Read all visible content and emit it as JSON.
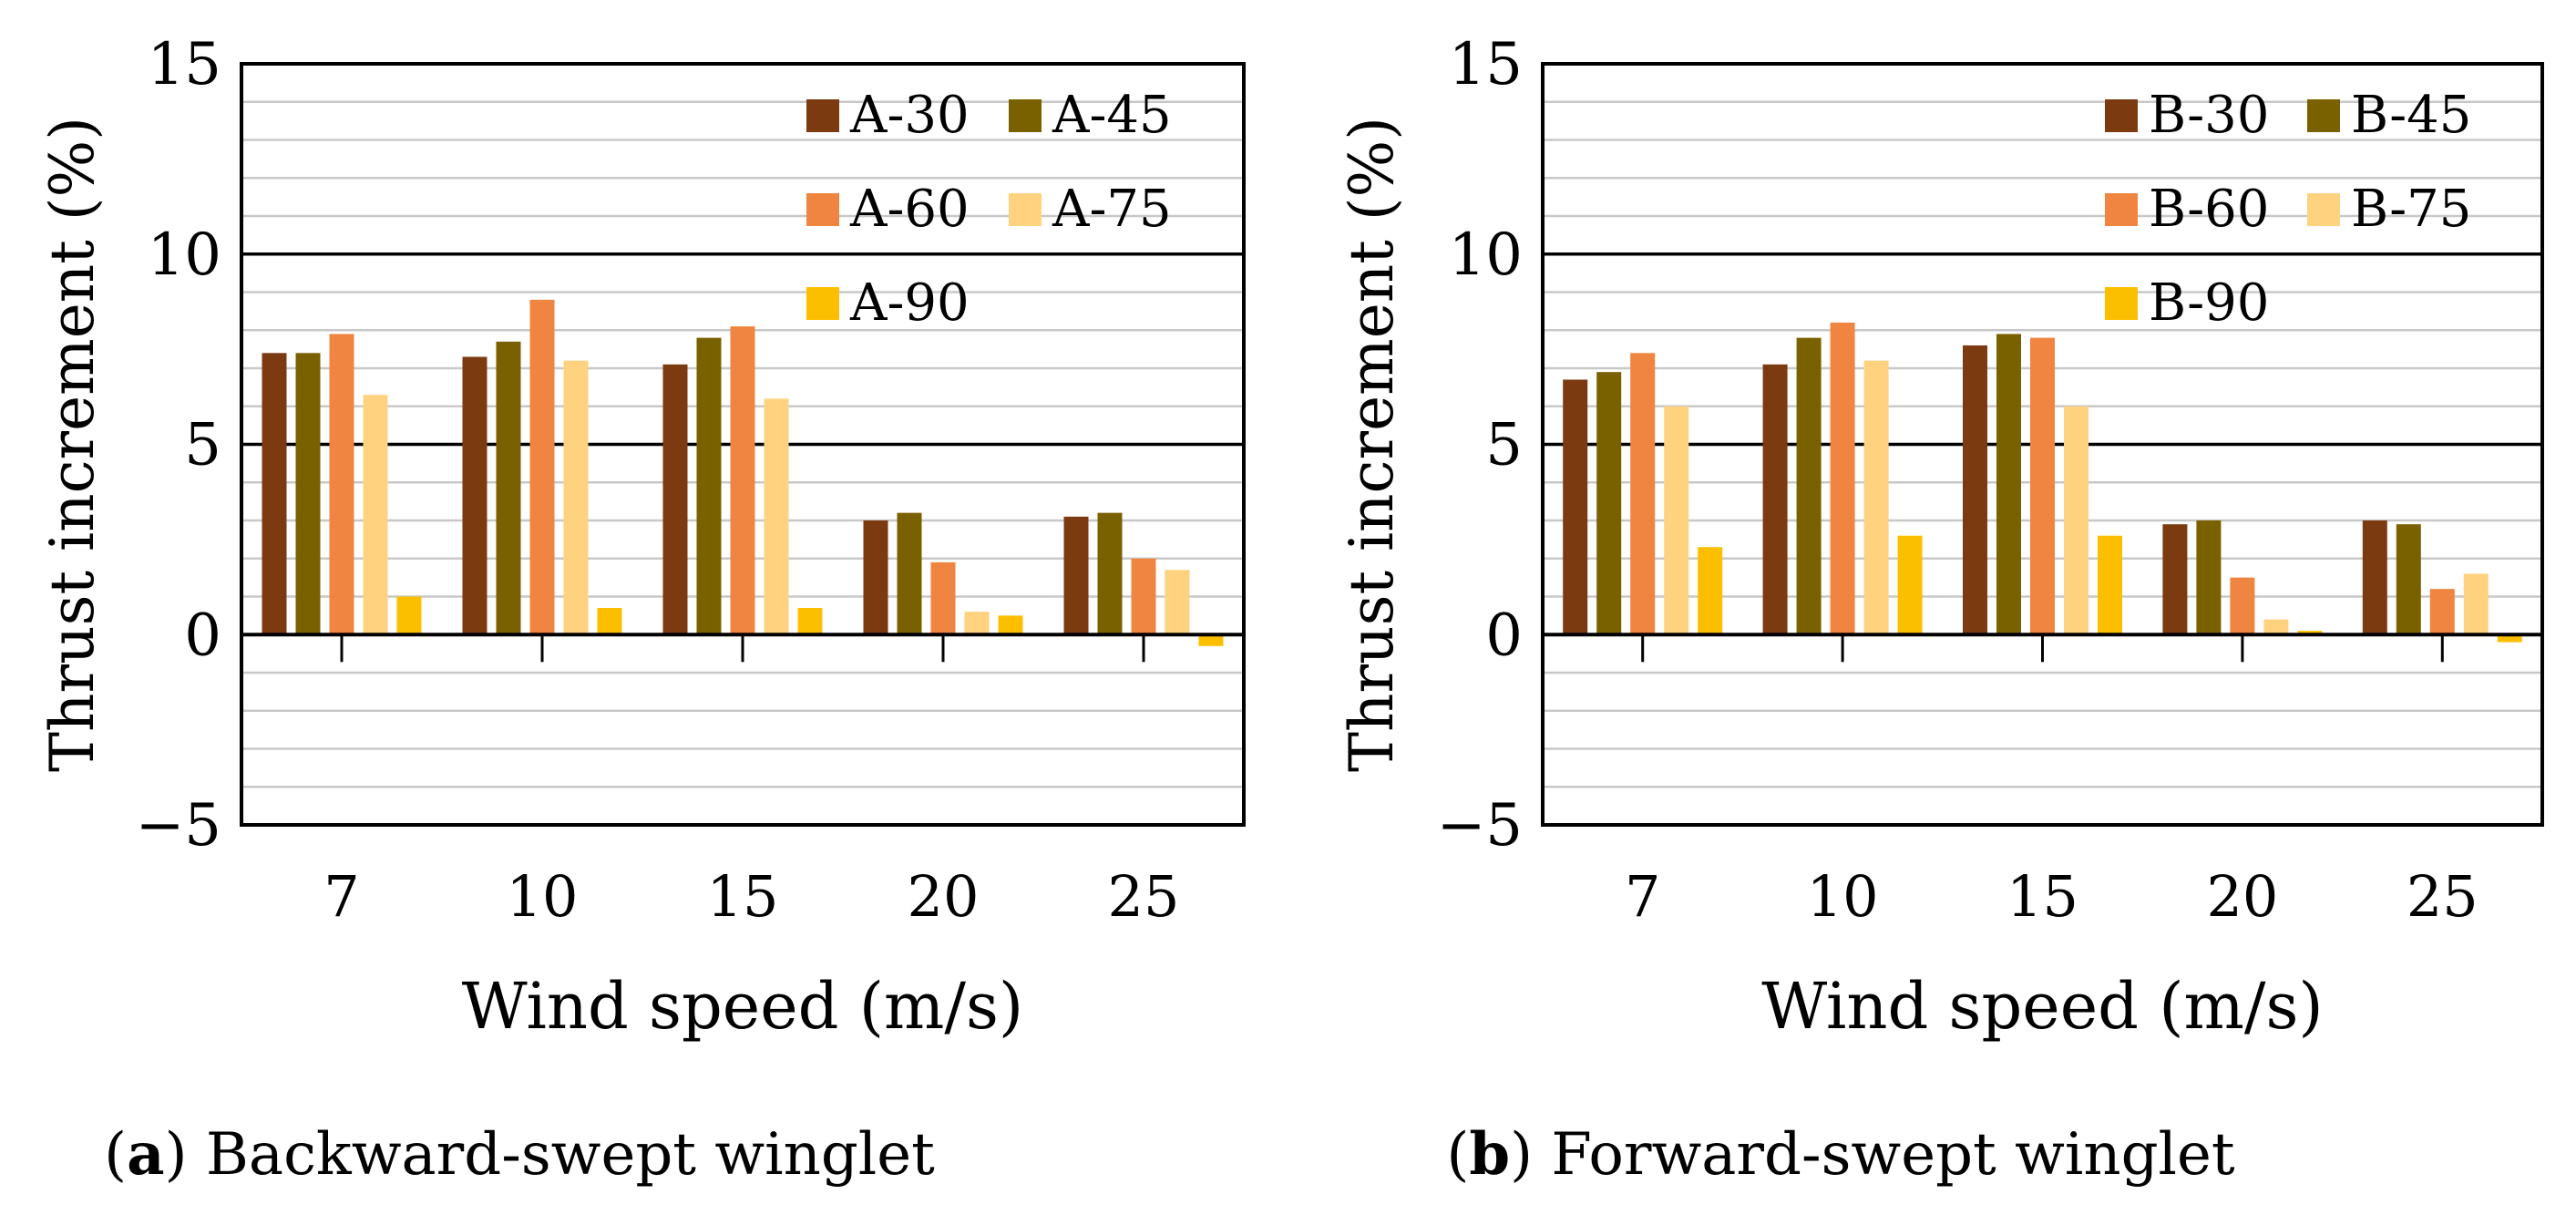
{
  "chart_data": [
    {
      "type": "bar",
      "panel_letter": "a",
      "caption": "Backward-swept winglet",
      "xlabel": "Wind speed (m/s)",
      "ylabel": "Thrust increment (%)",
      "ylim": [
        -5,
        15
      ],
      "yticks": [
        "15",
        "10",
        "5",
        "0",
        "−5"
      ],
      "ytick_values": [
        15,
        10,
        5,
        0,
        -5
      ],
      "categories": [
        "7",
        "10",
        "15",
        "20",
        "25"
      ],
      "grid": true,
      "legend_position": "top-right",
      "series": [
        {
          "name": "A-30",
          "color": "#7b3a10",
          "values": [
            7.4,
            7.3,
            7.1,
            3.0,
            3.1
          ]
        },
        {
          "name": "A-45",
          "color": "#7a6100",
          "values": [
            7.4,
            7.7,
            7.8,
            3.2,
            3.2
          ]
        },
        {
          "name": "A-60",
          "color": "#ef8540",
          "values": [
            7.9,
            8.8,
            8.1,
            1.9,
            2.0
          ]
        },
        {
          "name": "A-75",
          "color": "#ffd27f",
          "values": [
            6.3,
            7.2,
            6.2,
            0.6,
            1.7
          ]
        },
        {
          "name": "A-90",
          "color": "#fcbf00",
          "values": [
            1.0,
            0.7,
            0.7,
            0.5,
            -0.3
          ]
        }
      ]
    },
    {
      "type": "bar",
      "panel_letter": "b",
      "caption": "Forward-swept winglet",
      "xlabel": "Wind speed (m/s)",
      "ylabel": "Thrust increment (%)",
      "ylim": [
        -5,
        15
      ],
      "yticks": [
        "15",
        "10",
        "5",
        "0",
        "−5"
      ],
      "ytick_values": [
        15,
        10,
        5,
        0,
        -5
      ],
      "categories": [
        "7",
        "10",
        "15",
        "20",
        "25"
      ],
      "grid": true,
      "legend_position": "top-right",
      "series": [
        {
          "name": "B-30",
          "color": "#7b3a10",
          "values": [
            6.7,
            7.1,
            7.6,
            2.9,
            3.0
          ]
        },
        {
          "name": "B-45",
          "color": "#7a6100",
          "values": [
            6.9,
            7.8,
            7.9,
            3.0,
            2.9
          ]
        },
        {
          "name": "B-60",
          "color": "#ef8540",
          "values": [
            7.4,
            8.2,
            7.8,
            1.5,
            1.2
          ]
        },
        {
          "name": "B-75",
          "color": "#ffd27f",
          "values": [
            6.0,
            7.2,
            6.0,
            0.4,
            1.6
          ]
        },
        {
          "name": "B-90",
          "color": "#fcbf00",
          "values": [
            2.3,
            2.6,
            2.6,
            0.1,
            -0.2
          ]
        }
      ]
    }
  ]
}
